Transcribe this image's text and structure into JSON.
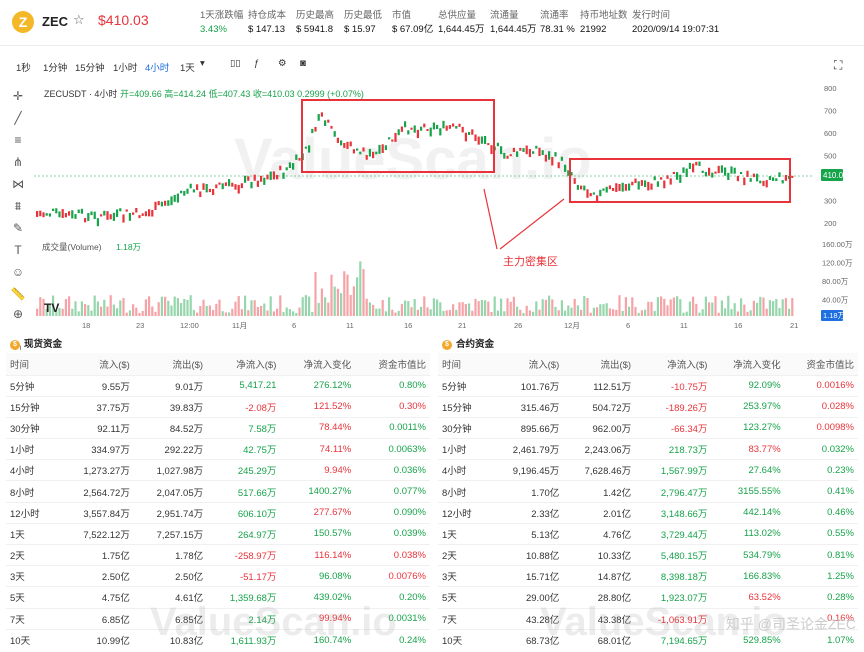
{
  "header": {
    "logo": "Z",
    "symbol": "ZEC",
    "star": "☆",
    "price": "$410.03",
    "stats": [
      {
        "label": "1天涨跌幅",
        "value": "3.43%",
        "color": "green"
      },
      {
        "label": "持仓成本",
        "value": "$ 147.13",
        "color": ""
      },
      {
        "label": "历史最高",
        "value": "$ 5941.8",
        "color": ""
      },
      {
        "label": "历史最低",
        "value": "$ 15.97",
        "color": ""
      },
      {
        "label": "市值",
        "value": "$ 67.09亿",
        "color": ""
      },
      {
        "label": "总供应量",
        "value": "1,644.45万",
        "color": ""
      },
      {
        "label": "流通量",
        "value": "1,644.45万",
        "color": ""
      },
      {
        "label": "流通率",
        "value": "78.31 %",
        "color": ""
      },
      {
        "label": "持币地址数",
        "value": "21992",
        "color": ""
      },
      {
        "label": "发行时间",
        "value": "2020/09/14 19:07:31",
        "color": ""
      }
    ]
  },
  "toolbar": {
    "intervals": [
      "1秒",
      "1分钟",
      "15分钟",
      "1小时",
      "4小时",
      "1天"
    ],
    "active": "4小时",
    "fullscreen_icon": "⛶"
  },
  "chart": {
    "ticker": "ZECUSDT · 4小时",
    "ohlc": "开=409.66 高=414.24 低=407.43 收=410.03 0.2999 (+0.07%)",
    "price_axis": [
      "800",
      "700",
      "600",
      "500",
      "400",
      "300",
      "200"
    ],
    "last_price": "410.03",
    "volume_label": "成交量(Volume)",
    "volume_value": "1.18万",
    "volume_axis": [
      "160.00万",
      "120.00万",
      "80.00万",
      "40.00万"
    ],
    "volume_last": "1.18万",
    "x_axis": [
      "18",
      "23",
      "12:00",
      "11月",
      "6",
      "11",
      "16",
      "21",
      "26",
      "12月",
      "6",
      "11",
      "16",
      "21"
    ],
    "annotation": "主力密集区",
    "watermark": "ValueScan.io"
  },
  "spot": {
    "title": "现货资金",
    "columns": [
      "时间",
      "流入($)",
      "流出($)",
      "净流入($)",
      "净流入变化",
      "资金市值比"
    ],
    "rows": [
      [
        "5分钟",
        "9.55万",
        "9.01万",
        "5,417.21",
        "276.12%",
        "0.80%"
      ],
      [
        "15分钟",
        "37.75万",
        "39.83万",
        "-2.08万",
        "121.52%",
        "0.30%"
      ],
      [
        "30分钟",
        "92.11万",
        "84.52万",
        "7.58万",
        "78.44%",
        "0.0011%"
      ],
      [
        "1小时",
        "334.97万",
        "292.22万",
        "42.75万",
        "74.11%",
        "0.0063%"
      ],
      [
        "4小时",
        "1,273.27万",
        "1,027.98万",
        "245.29万",
        "9.94%",
        "0.036%"
      ],
      [
        "8小时",
        "2,564.72万",
        "2,047.05万",
        "517.66万",
        "1400.27%",
        "0.077%"
      ],
      [
        "12小时",
        "3,557.84万",
        "2,951.74万",
        "606.10万",
        "277.67%",
        "0.090%"
      ],
      [
        "1天",
        "7,522.12万",
        "7,257.15万",
        "264.97万",
        "150.57%",
        "0.039%"
      ],
      [
        "2天",
        "1.75亿",
        "1.78亿",
        "-258.97万",
        "116.14%",
        "0.038%"
      ],
      [
        "3天",
        "2.50亿",
        "2.50亿",
        "-51.17万",
        "96.08%",
        "0.0076%"
      ],
      [
        "5天",
        "4.75亿",
        "4.61亿",
        "1,359.68万",
        "439.02%",
        "0.20%"
      ],
      [
        "7天",
        "6.85亿",
        "6.85亿",
        "2.14万",
        "99.94%",
        "0.0031%"
      ],
      [
        "10天",
        "10.99亿",
        "10.83亿",
        "1,611.93万",
        "160.74%",
        "0.24%"
      ]
    ],
    "signs": [
      [
        "pos",
        "pos",
        "pos"
      ],
      [
        "neg",
        "neg",
        "neg"
      ],
      [
        "pos",
        "neg",
        "pos"
      ],
      [
        "pos",
        "neg",
        "pos"
      ],
      [
        "pos",
        "neg",
        "pos"
      ],
      [
        "pos",
        "pos",
        "pos"
      ],
      [
        "pos",
        "neg",
        "pos"
      ],
      [
        "pos",
        "pos",
        "pos"
      ],
      [
        "neg",
        "neg",
        "neg"
      ],
      [
        "neg",
        "pos",
        "neg"
      ],
      [
        "pos",
        "pos",
        "pos"
      ],
      [
        "pos",
        "neg",
        "pos"
      ],
      [
        "pos",
        "pos",
        "pos"
      ]
    ]
  },
  "futures": {
    "title": "合约资金",
    "columns": [
      "时间",
      "流入($)",
      "流出($)",
      "净流入($)",
      "净流入变化",
      "资金市值比"
    ],
    "rows": [
      [
        "5分钟",
        "101.76万",
        "112.51万",
        "-10.75万",
        "92.09%",
        "0.0016%"
      ],
      [
        "15分钟",
        "315.46万",
        "504.72万",
        "-189.26万",
        "253.97%",
        "0.028%"
      ],
      [
        "30分钟",
        "895.66万",
        "962.00万",
        "-66.34万",
        "123.27%",
        "0.0098%"
      ],
      [
        "1小时",
        "2,461.79万",
        "2,243.06万",
        "218.73万",
        "83.77%",
        "0.032%"
      ],
      [
        "4小时",
        "9,196.45万",
        "7,628.46万",
        "1,567.99万",
        "27.64%",
        "0.23%"
      ],
      [
        "8小时",
        "1.70亿",
        "1.42亿",
        "2,796.47万",
        "3155.55%",
        "0.41%"
      ],
      [
        "12小时",
        "2.33亿",
        "2.01亿",
        "3,148.66万",
        "442.14%",
        "0.46%"
      ],
      [
        "1天",
        "5.13亿",
        "4.76亿",
        "3,729.44万",
        "113.02%",
        "0.55%"
      ],
      [
        "2天",
        "10.88亿",
        "10.33亿",
        "5,480.15万",
        "534.79%",
        "0.81%"
      ],
      [
        "3天",
        "15.71亿",
        "14.87亿",
        "8,398.18万",
        "166.83%",
        "1.25%"
      ],
      [
        "5天",
        "29.00亿",
        "28.80亿",
        "1,923.07万",
        "63.52%",
        "0.28%"
      ],
      [
        "7天",
        "43.28亿",
        "43.38亿",
        "-1,063.91万",
        "-",
        "0.16%"
      ],
      [
        "10天",
        "68.73亿",
        "68.01亿",
        "7,194.65万",
        "529.85%",
        "1.07%"
      ]
    ],
    "signs": [
      [
        "neg",
        "pos",
        "neg"
      ],
      [
        "neg",
        "pos",
        "neg"
      ],
      [
        "neg",
        "pos",
        "neg"
      ],
      [
        "pos",
        "neg",
        "pos"
      ],
      [
        "pos",
        "pos",
        "pos"
      ],
      [
        "pos",
        "pos",
        "pos"
      ],
      [
        "pos",
        "pos",
        "pos"
      ],
      [
        "pos",
        "pos",
        "pos"
      ],
      [
        "pos",
        "pos",
        "pos"
      ],
      [
        "pos",
        "pos",
        "pos"
      ],
      [
        "pos",
        "neg",
        "pos"
      ],
      [
        "neg",
        "neg",
        "neg"
      ],
      [
        "pos",
        "pos",
        "pos"
      ]
    ]
  },
  "footer": "知乎 @司圣论金ZEC"
}
